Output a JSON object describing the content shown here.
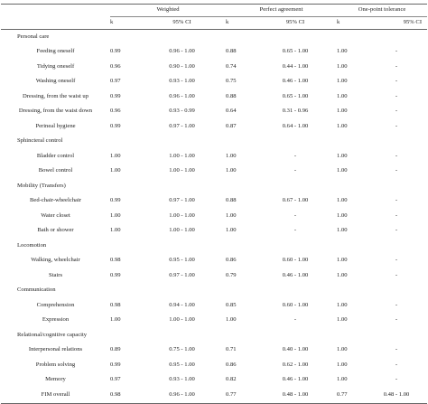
{
  "headers": {
    "group_weighted": "Weighted",
    "group_perfect": "Perfect agreement",
    "group_onepoint": "One-point tolerance",
    "k": "k",
    "ci": "95% CI"
  },
  "rows": [
    {
      "type": "category",
      "label": "Personal care"
    },
    {
      "type": "item",
      "label": "Feeding oneself",
      "w_k": "0.99",
      "w_ci": "0.96 - 1.00",
      "p_k": "0.88",
      "p_ci": "0.65 - 1.00",
      "o_k": "1.00",
      "o_ci": "-"
    },
    {
      "type": "item",
      "label": "Tidying oneself",
      "w_k": "0.96",
      "w_ci": "0.90 - 1.00",
      "p_k": "0.74",
      "p_ci": "0.44 - 1.00",
      "o_k": "1.00",
      "o_ci": "-"
    },
    {
      "type": "item",
      "label": "Washing oneself",
      "w_k": "0.97",
      "w_ci": "0.93 - 1.00",
      "p_k": "0.75",
      "p_ci": "0.46 - 1.00",
      "o_k": "1.00",
      "o_ci": "-"
    },
    {
      "type": "item",
      "label": "Dressing, from the waist up",
      "w_k": "0.99",
      "w_ci": "0.96 - 1.00",
      "p_k": "0.88",
      "p_ci": "0.65 - 1.00",
      "o_k": "1.00",
      "o_ci": "-"
    },
    {
      "type": "item",
      "label": "Dressing, from the waist down",
      "w_k": "0.96",
      "w_ci": "0.93 - 0.99",
      "p_k": "0.64",
      "p_ci": "0.31 - 0.96",
      "o_k": "1.00",
      "o_ci": "-"
    },
    {
      "type": "item",
      "label": "Perineal hygiene",
      "w_k": "0.99",
      "w_ci": "0.97 - 1.00",
      "p_k": "0.87",
      "p_ci": "0.64 - 1.00",
      "o_k": "1.00",
      "o_ci": "-"
    },
    {
      "type": "category",
      "label": "Sphincteral control"
    },
    {
      "type": "item",
      "label": "Bladder control",
      "w_k": "1.00",
      "w_ci": "1.00 - 1.00",
      "p_k": "1.00",
      "p_ci": "-",
      "o_k": "1.00",
      "o_ci": "-"
    },
    {
      "type": "item",
      "label": "Bowel control",
      "w_k": "1.00",
      "w_ci": "1.00 - 1.00",
      "p_k": "1.00",
      "p_ci": "-",
      "o_k": "1.00",
      "o_ci": "-"
    },
    {
      "type": "category",
      "label": "Mobility (Transfers)"
    },
    {
      "type": "item",
      "label": "Bed-chair-wheelchair",
      "w_k": "0.99",
      "w_ci": "0.97 - 1.00",
      "p_k": "0.88",
      "p_ci": "0.67 - 1.00",
      "o_k": "1.00",
      "o_ci": "-"
    },
    {
      "type": "item",
      "label": "Water closet",
      "w_k": "1.00",
      "w_ci": "1.00 - 1.00",
      "p_k": "1.00",
      "p_ci": "-",
      "o_k": "1.00",
      "o_ci": "-"
    },
    {
      "type": "item",
      "label": "Bath or shower",
      "w_k": "1.00",
      "w_ci": "1.00 - 1.00",
      "p_k": "1.00",
      "p_ci": "-",
      "o_k": "1.00",
      "o_ci": "-"
    },
    {
      "type": "category",
      "label": "Locomotion"
    },
    {
      "type": "item",
      "label": "Walking, wheelchair",
      "w_k": "0.98",
      "w_ci": "0.95 - 1.00",
      "p_k": "0.86",
      "p_ci": "0.60 - 1.00",
      "o_k": "1.00",
      "o_ci": "-"
    },
    {
      "type": "item",
      "label": "Stairs",
      "w_k": "0.99",
      "w_ci": "0.97 - 1.00",
      "p_k": "0.79",
      "p_ci": "0.46 - 1.00",
      "o_k": "1.00",
      "o_ci": "-"
    },
    {
      "type": "category",
      "label": "Communication"
    },
    {
      "type": "item",
      "label": "Comprehension",
      "w_k": "0.98",
      "w_ci": "0.94 - 1.00",
      "p_k": "0.85",
      "p_ci": "0.60 - 1.00",
      "o_k": "1.00",
      "o_ci": "-"
    },
    {
      "type": "item",
      "label": "Expression",
      "w_k": "1.00",
      "w_ci": "1.00 - 1.00",
      "p_k": "1.00",
      "p_ci": "-",
      "o_k": "1.00",
      "o_ci": "-"
    },
    {
      "type": "category",
      "label": "Relational/cognitive capacity"
    },
    {
      "type": "item",
      "label": "Interpersonal relations",
      "w_k": "0.89",
      "w_ci": "0.75 - 1.00",
      "p_k": "0.71",
      "p_ci": "0.40 - 1.00",
      "o_k": "1.00",
      "o_ci": "-"
    },
    {
      "type": "item",
      "label": "Problem solving",
      "w_k": "0.99",
      "w_ci": "0.95 - 1.00",
      "p_k": "0.86",
      "p_ci": "0.62 - 1.00",
      "o_k": "1.00",
      "o_ci": "-"
    },
    {
      "type": "item",
      "label": "Memory",
      "w_k": "0.97",
      "w_ci": "0.93 - 1.00",
      "p_k": "0.82",
      "p_ci": "0.46 - 1.00",
      "o_k": "1.00",
      "o_ci": "-"
    },
    {
      "type": "item",
      "label": "FIM overall",
      "w_k": "0.98",
      "w_ci": "0.96 - 1.00",
      "p_k": "0.77",
      "p_ci": "0.48 - 1.00",
      "o_k": "0.77",
      "o_ci": "0.48 - 1.00"
    }
  ]
}
